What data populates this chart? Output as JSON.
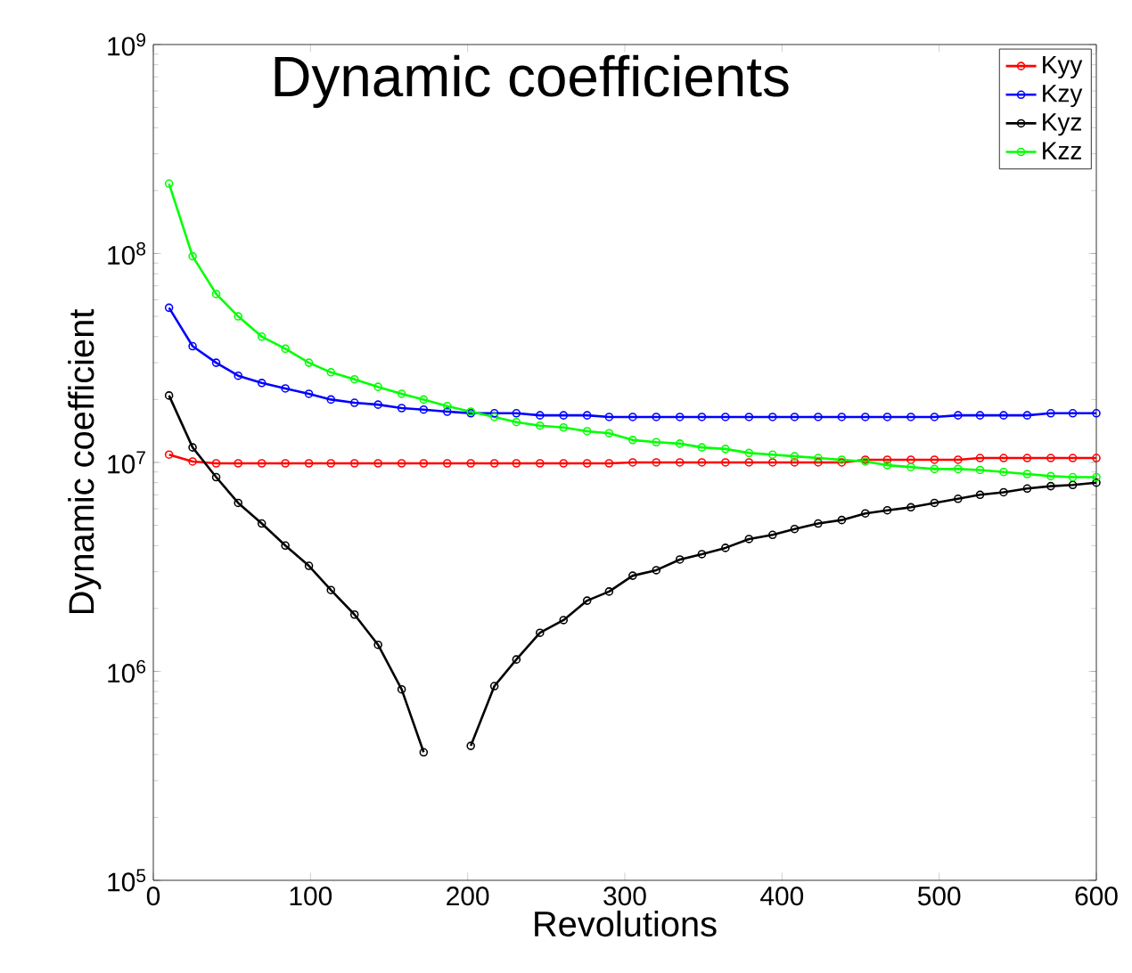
{
  "chart_data": {
    "type": "line",
    "title": "Dynamic coefficients",
    "xlabel": "Revolutions",
    "ylabel": "Dynamic coefficient",
    "log": true,
    "marker": "circle",
    "line_style": "solid",
    "legend": "top right",
    "grid": false,
    "xlim": [
      0,
      600
    ],
    "xticks": [
      0,
      100,
      200,
      300,
      400,
      500,
      600
    ],
    "ylim": [
      100000.0,
      1000000000.0
    ],
    "yticks": [
      {
        "value": 100000.0,
        "label": "10$^{5}$"
      },
      {
        "value": 1000000.0,
        "label": "10$^{6}$"
      },
      {
        "value": 10000000.0,
        "label": "10$^{7}$"
      },
      {
        "value": 100000000.0,
        "label": "10$^{8}$"
      },
      {
        "value": 1000000000.0,
        "label": "10$^{9}$"
      }
    ],
    "x": [
      10,
      25,
      40,
      54,
      69,
      84,
      99,
      113,
      128,
      143,
      158,
      172,
      187,
      202,
      217,
      231,
      246,
      261,
      276,
      290,
      305,
      320,
      335,
      349,
      364,
      379,
      394,
      408,
      423,
      438,
      453,
      467,
      482,
      497,
      512,
      526,
      541,
      556,
      571,
      585,
      600
    ],
    "series": [
      {
        "name": "Kyy",
        "color": "#ff0000",
        "values": [
          10900000.0,
          10100000.0,
          9900000.0,
          9900000.0,
          9900000.0,
          9900000.0,
          9900000.0,
          9900000.0,
          9900000.0,
          9900000.0,
          9900000.0,
          9900000.0,
          9900000.0,
          9900000.0,
          9900000.0,
          9900000.0,
          9900000.0,
          9900000.0,
          9900000.0,
          9900000.0,
          10000000.0,
          10000000.0,
          10000000.0,
          10000000.0,
          10000000.0,
          10000000.0,
          10000000.0,
          10000000.0,
          10000000.0,
          10000000.0,
          10300000.0,
          10300000.0,
          10300000.0,
          10300000.0,
          10300000.0,
          10500000.0,
          10500000.0,
          10500000.0,
          10500000.0,
          10500000.0,
          10500000.0
        ]
      },
      {
        "name": "Kzy",
        "color": "#0000ff",
        "values": [
          55000000.0,
          36000000.0,
          30000000.0,
          26000000.0,
          24000000.0,
          22600000.0,
          21300000.0,
          20000000.0,
          19300000.0,
          18900000.0,
          18200000.0,
          17900000.0,
          17500000.0,
          17200000.0,
          17200000.0,
          17200000.0,
          16800000.0,
          16800000.0,
          16800000.0,
          16500000.0,
          16500000.0,
          16500000.0,
          16500000.0,
          16500000.0,
          16500000.0,
          16500000.0,
          16500000.0,
          16500000.0,
          16500000.0,
          16500000.0,
          16500000.0,
          16500000.0,
          16500000.0,
          16500000.0,
          16800000.0,
          16800000.0,
          16800000.0,
          16800000.0,
          17200000.0,
          17200000.0,
          17200000.0
        ]
      },
      {
        "name": "Kyz",
        "color": "#000000",
        "values": [
          20900000.0,
          11800000.0,
          8500000.0,
          6400000.0,
          5100000.0,
          4000000.0,
          3200000.0,
          2450000.0,
          1870000.0,
          1340000.0,
          820000.0,
          410000.0,
          null,
          440000.0,
          850000.0,
          1140000.0,
          1530000.0,
          1760000.0,
          2180000.0,
          2410000.0,
          2870000.0,
          3050000.0,
          3430000.0,
          3640000.0,
          3900000.0,
          4300000.0,
          4500000.0,
          4800000.0,
          5100000.0,
          5300000.0,
          5700000.0,
          5900000.0,
          6100000.0,
          6400000.0,
          6700000.0,
          7000000.0,
          7200000.0,
          7500000.0,
          7700000.0,
          7800000.0,
          8000000.0
        ]
      },
      {
        "name": "Kzz",
        "color": "#00ff00",
        "values": [
          216000000.0,
          97000000.0,
          64000000.0,
          50000000.0,
          40000000.0,
          35000000.0,
          30000000.0,
          27000000.0,
          25000000.0,
          23000000.0,
          21300000.0,
          20000000.0,
          18600000.0,
          17500000.0,
          16500000.0,
          15600000.0,
          15000000.0,
          14700000.0,
          14100000.0,
          13800000.0,
          12800000.0,
          12500000.0,
          12300000.0,
          11800000.0,
          11600000.0,
          11100000.0,
          10900000.0,
          10700000.0,
          10500000.0,
          10300000.0,
          10100000.0,
          9700000.0,
          9500000.0,
          9300000.0,
          9300000.0,
          9200000.0,
          9000000.0,
          8800000.0,
          8600000.0,
          8500000.0,
          8500000.0
        ]
      }
    ]
  }
}
